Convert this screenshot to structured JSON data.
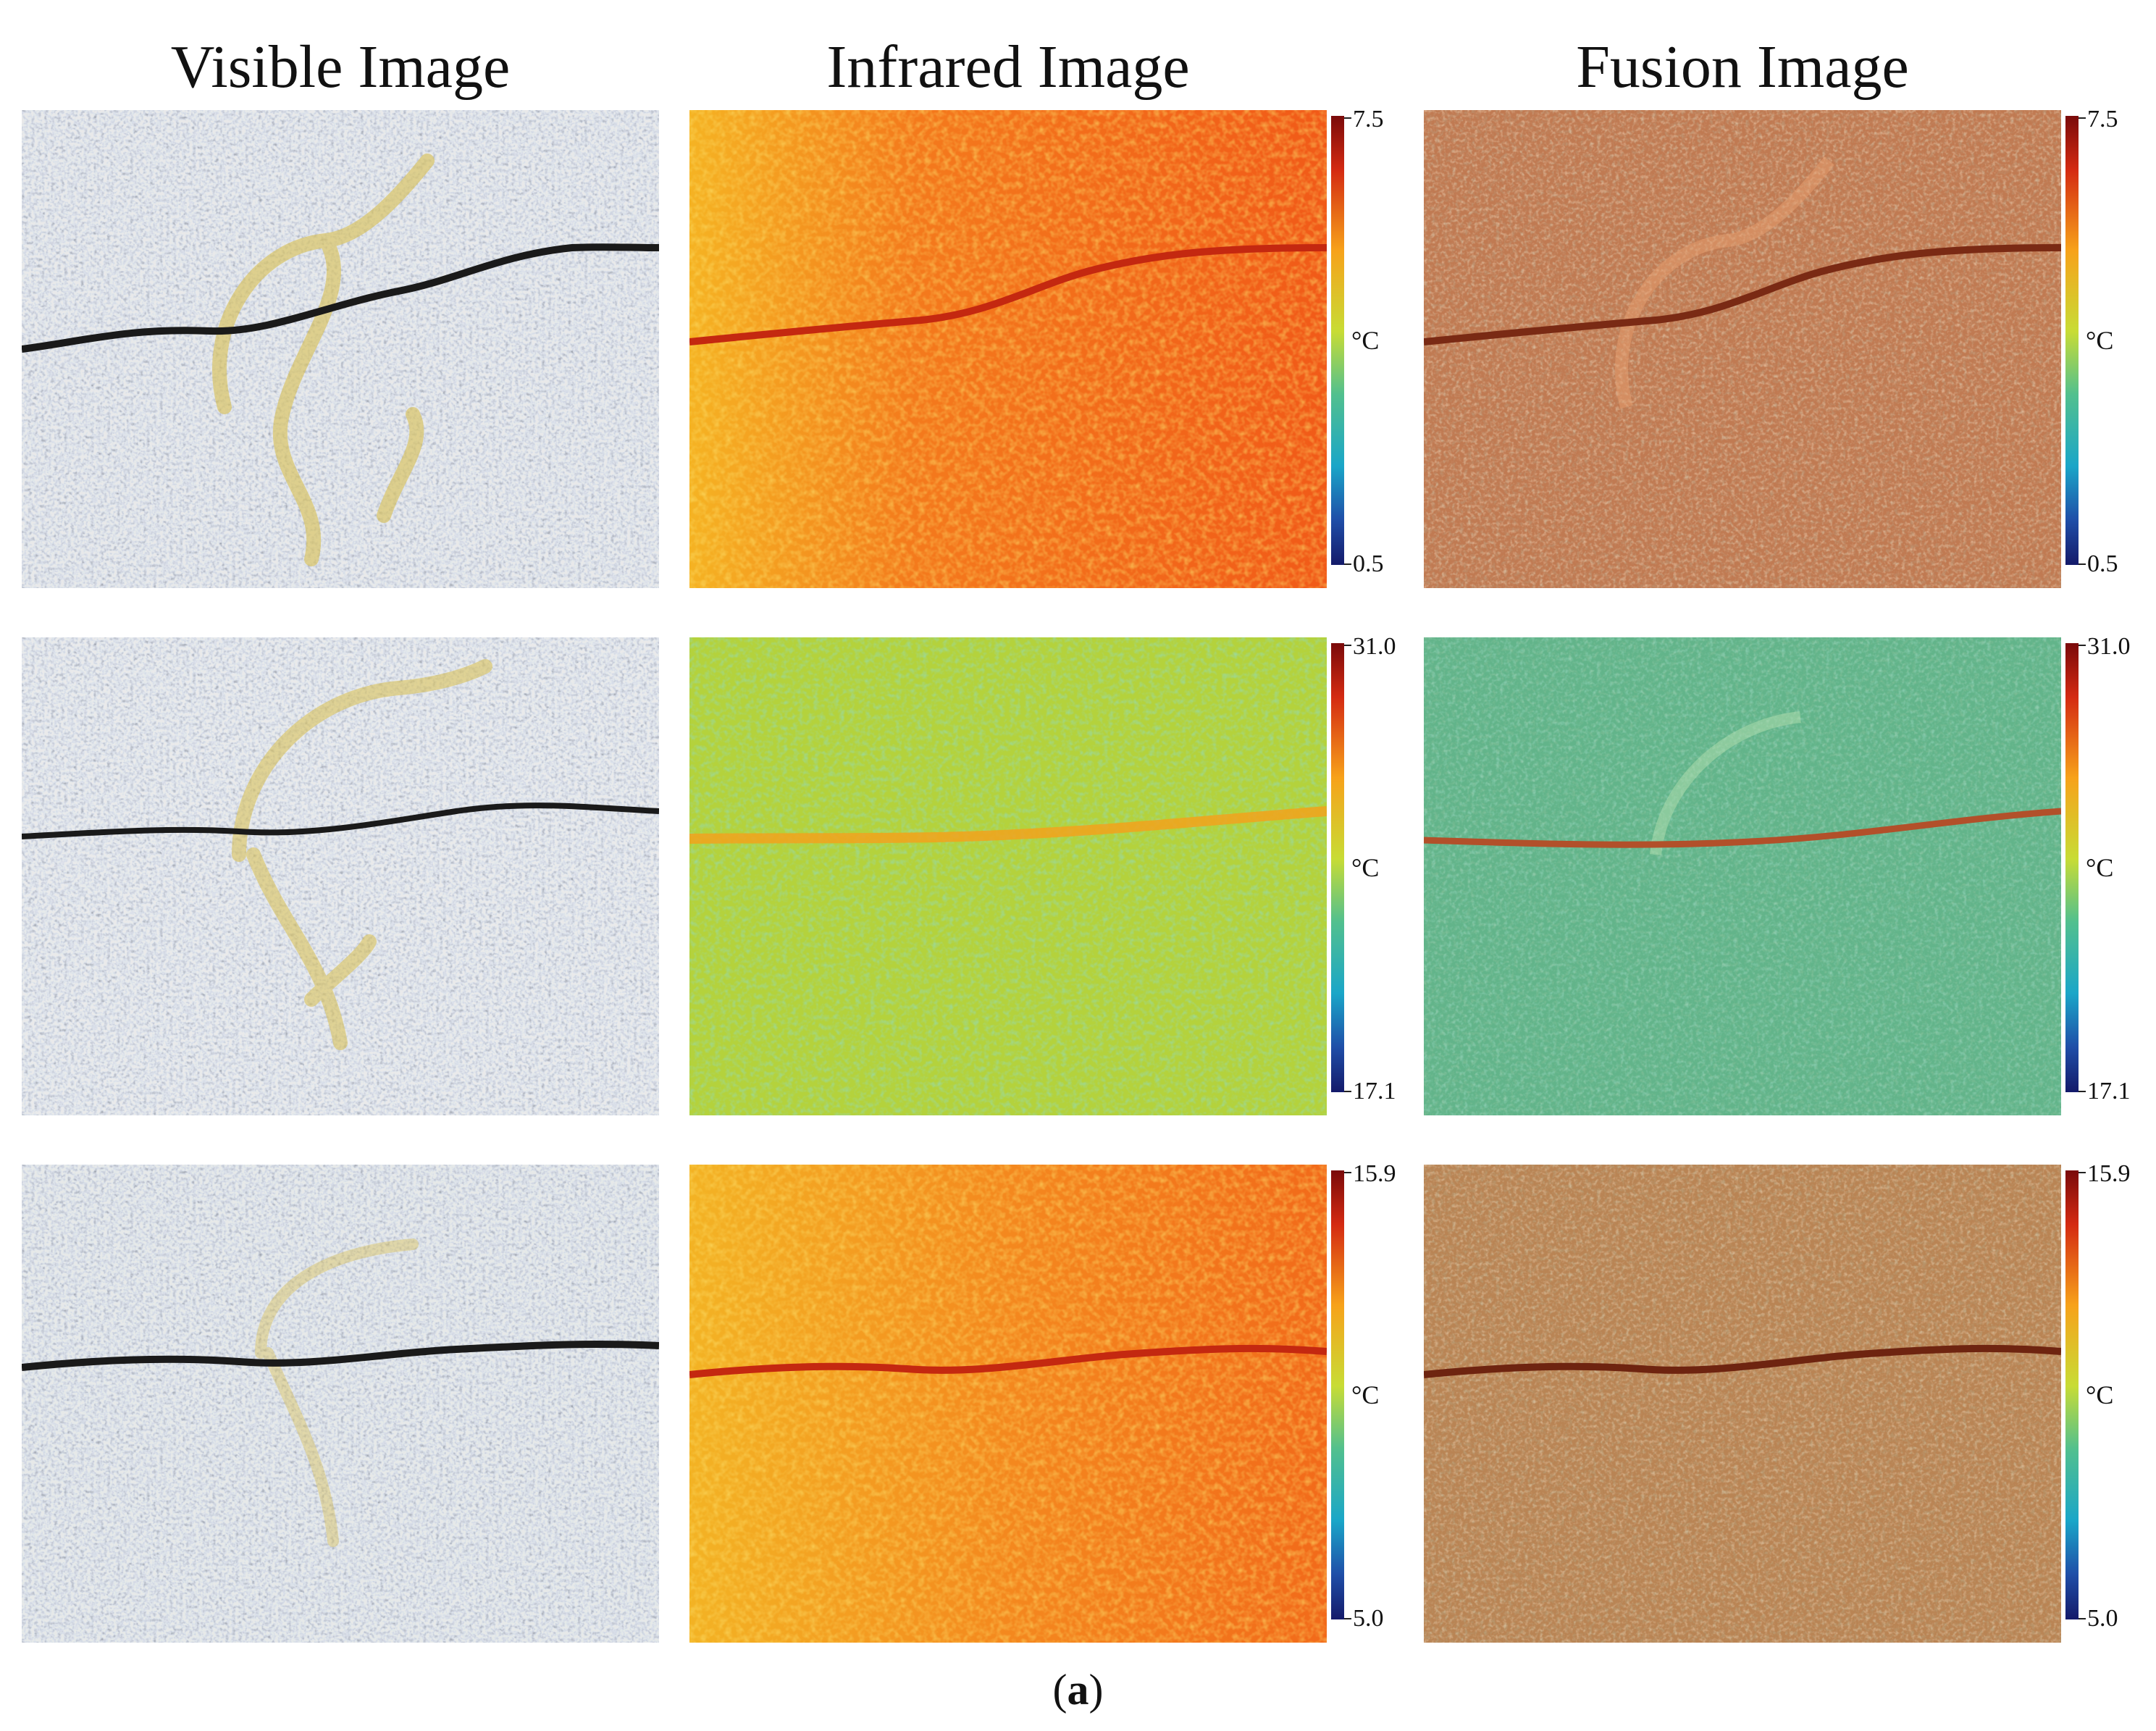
{
  "headers": {
    "visible": "Visible Image",
    "infrared": "Infrared Image",
    "fusion": "Fusion Image"
  },
  "rows": [
    {
      "colorbar": {
        "max": "7.5",
        "unit": "°C",
        "min": "0.5"
      }
    },
    {
      "colorbar": {
        "max": "31.0",
        "unit": "°C",
        "min": "17.1"
      }
    },
    {
      "colorbar": {
        "max": "15.9",
        "unit": "°C",
        "min": "5.0"
      }
    }
  ],
  "caption": {
    "letter": "a"
  },
  "colors": {
    "ir_warm": "#f4721a",
    "ir_cool": "#b7d23c",
    "fusion_warm": "#c47a4e",
    "fusion_cool": "#5fb58a",
    "crack": "#1a1a1a",
    "paint": "#d9c25a"
  }
}
